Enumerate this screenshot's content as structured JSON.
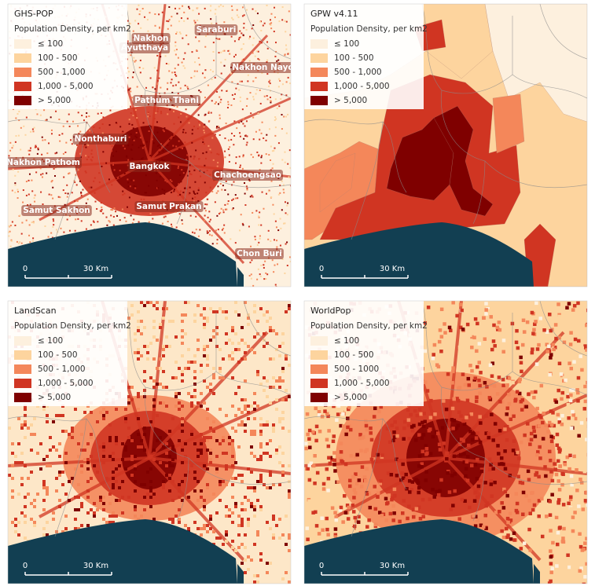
{
  "panels": [
    {
      "title": "GHS-POP",
      "legend_title": "Population Density, per km2",
      "legend": [
        {
          "label": "≤ 100",
          "color": "#fdf0de"
        },
        {
          "label": "100 - 500",
          "color": "#fdd49e"
        },
        {
          "label": "500 - 1,000",
          "color": "#f4875a"
        },
        {
          "label": "1,000 - 5,000",
          "color": "#d03522"
        },
        {
          "label": "> 5,000",
          "color": "#7f0000"
        }
      ],
      "scale_labels": [
        "0",
        "30 Km"
      ],
      "place_labels": [
        "Saraburi",
        "Nakhon",
        "Ayutthaya",
        "Nakhon Nayok",
        "Pathum Thani",
        "Nonthaburi",
        "Nakhon Pathom",
        "Bangkok",
        "Chachoengsao",
        "Samut Sakhon",
        "Samut Prakan",
        "Chon Buri"
      ]
    },
    {
      "title": "GPW v4.11",
      "legend_title": "Population Density, per km2",
      "legend": [
        {
          "label": "≤ 100",
          "color": "#fdf0de"
        },
        {
          "label": "100 - 500",
          "color": "#fdd49e"
        },
        {
          "label": "500 - 1,000",
          "color": "#f4875a"
        },
        {
          "label": "1,000 - 5,000",
          "color": "#d03522"
        },
        {
          "label": "> 5,000",
          "color": "#7f0000"
        }
      ],
      "scale_labels": [
        "0",
        "30 Km"
      ]
    },
    {
      "title": "LandScan",
      "legend_title": "Population Density, per km2",
      "legend": [
        {
          "label": "≤ 100",
          "color": "#fdf0de"
        },
        {
          "label": "100 - 500",
          "color": "#fdd49e"
        },
        {
          "label": "500 - 1,000",
          "color": "#f4875a"
        },
        {
          "label": "1,000 - 5,000",
          "color": "#d03522"
        },
        {
          "label": "> 5,000",
          "color": "#7f0000"
        }
      ],
      "scale_labels": [
        "0",
        "30 Km"
      ]
    },
    {
      "title": "WorldPop",
      "legend_title": "Population Density, per km2",
      "legend": [
        {
          "label": "≤ 100",
          "color": "#fdf0de"
        },
        {
          "label": "100 - 500",
          "color": "#fdd49e"
        },
        {
          "label": "500 - 1000",
          "color": "#f4875a"
        },
        {
          "label": "1,000 - 5,000",
          "color": "#d03522"
        },
        {
          "label": "> 5,000",
          "color": "#7f0000"
        }
      ],
      "scale_labels": [
        "0",
        "30 Km"
      ]
    }
  ]
}
